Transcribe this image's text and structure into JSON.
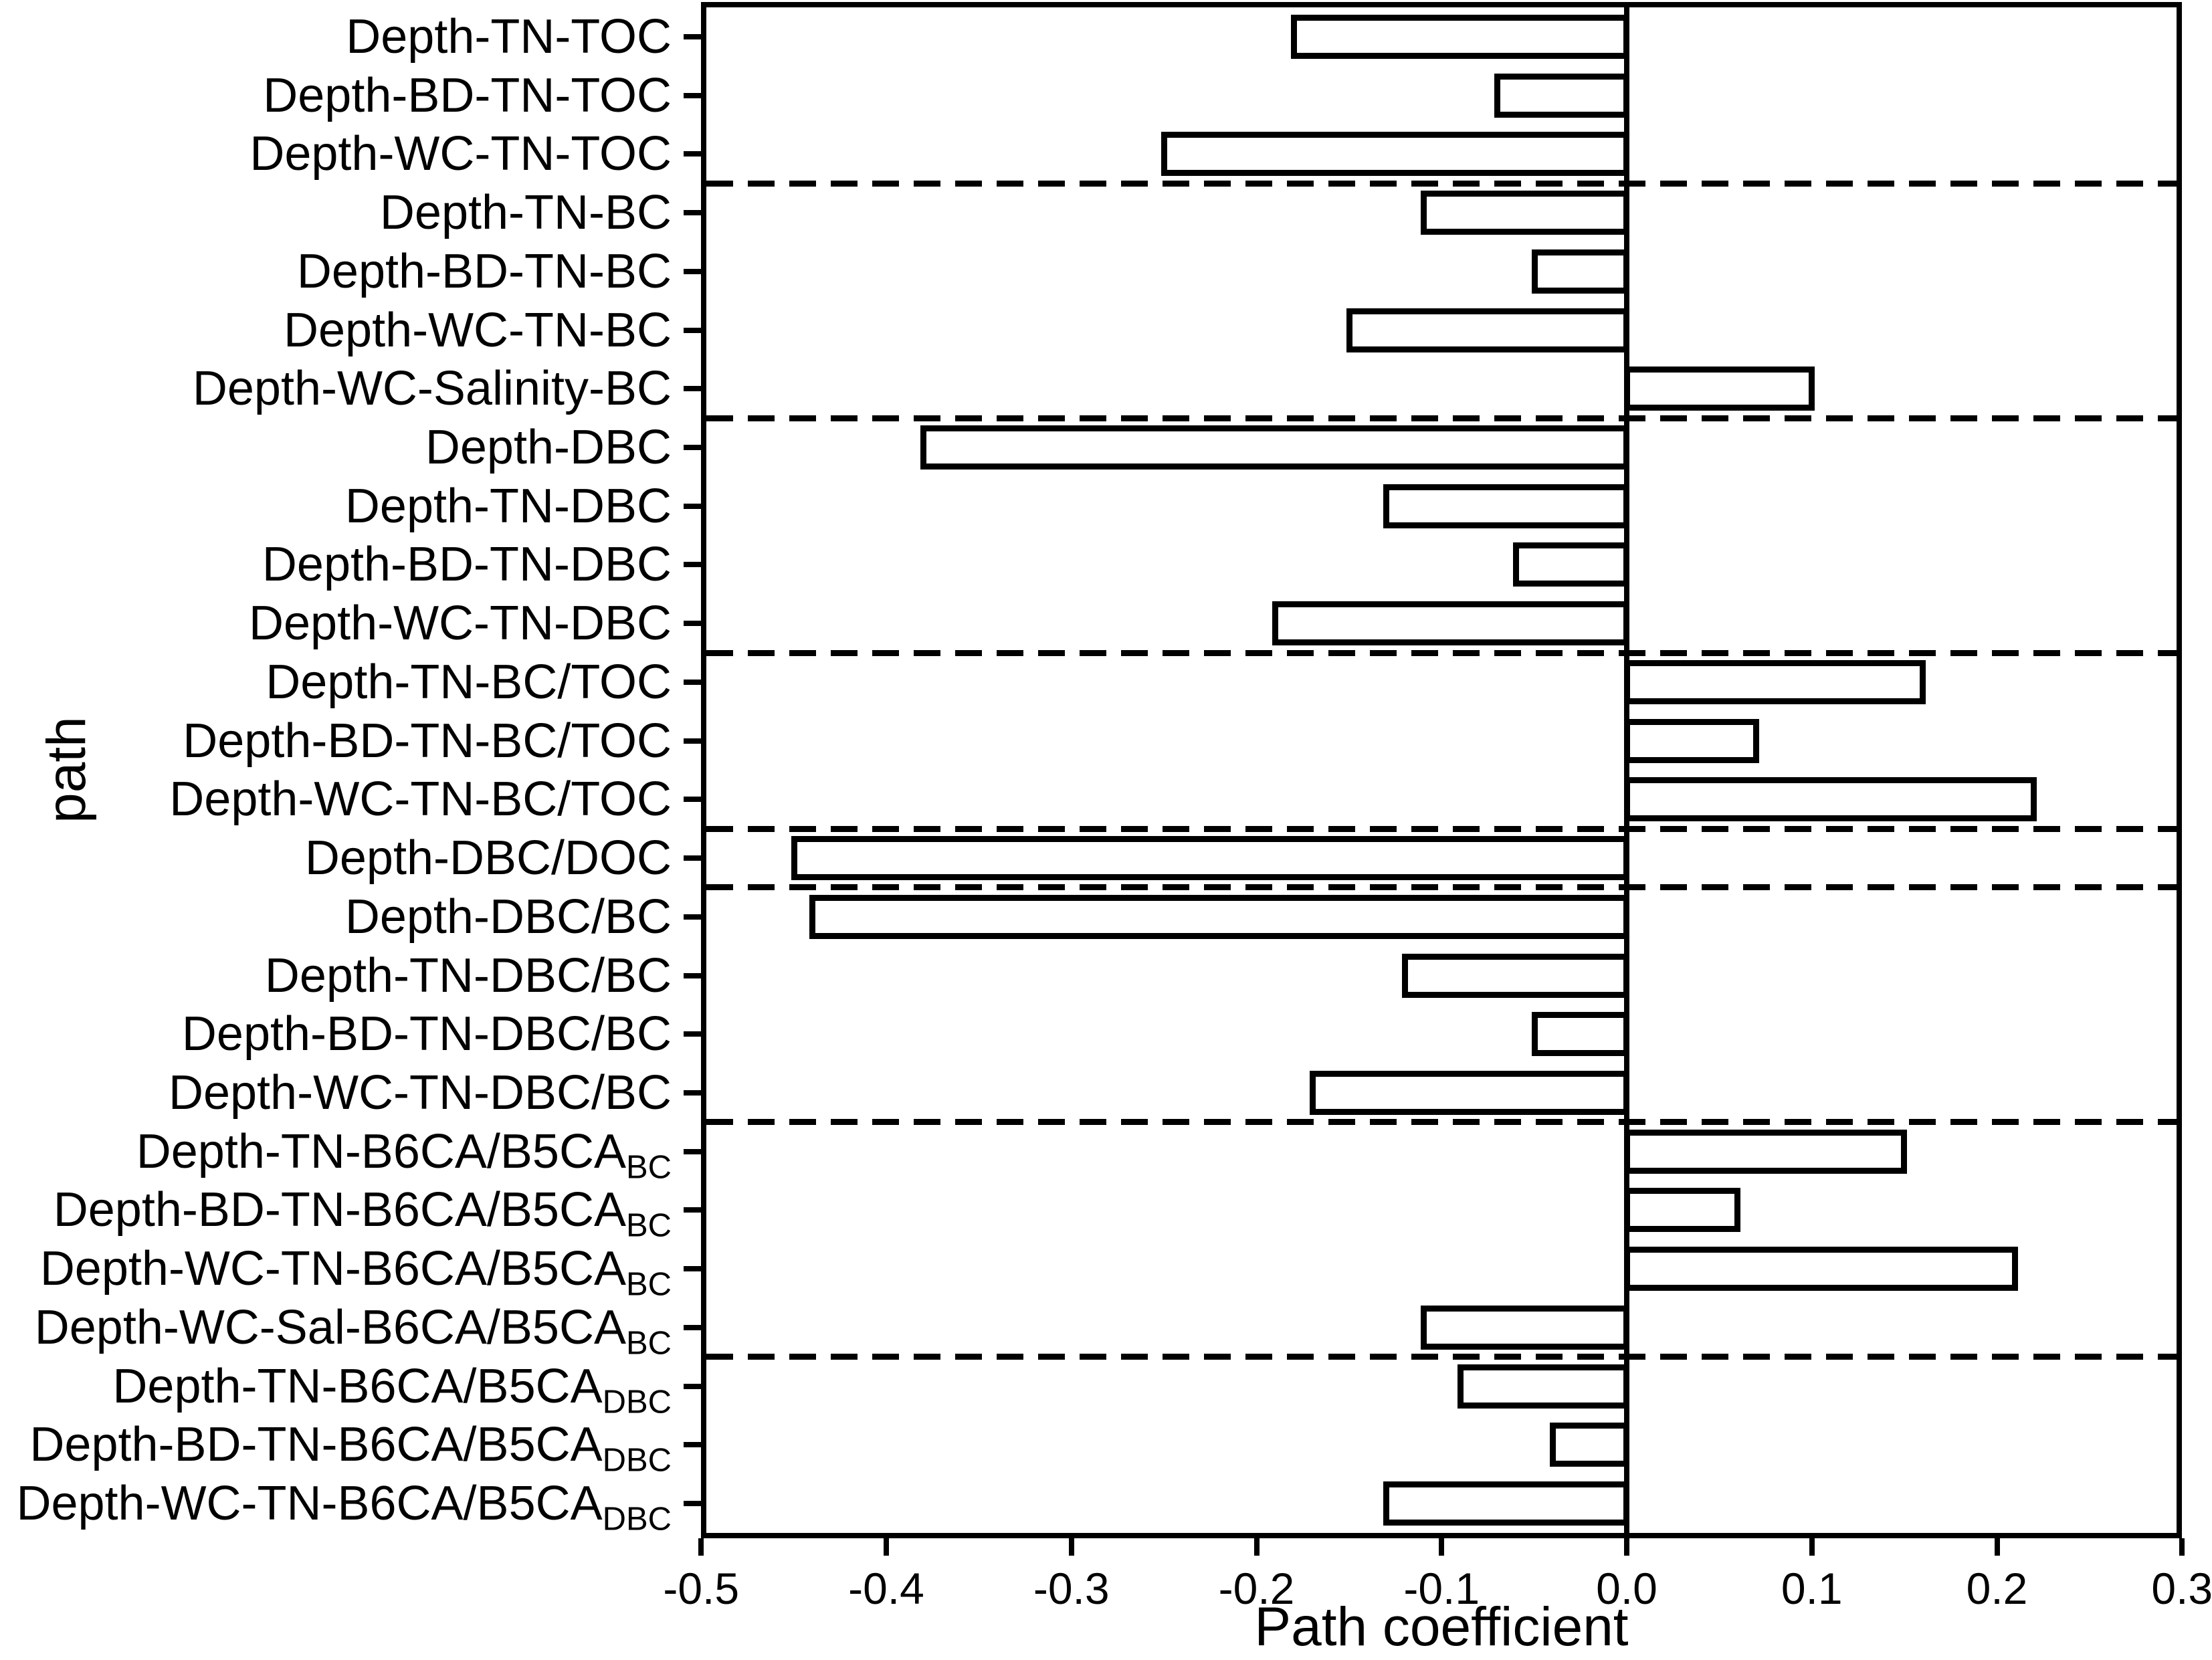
{
  "colors": {
    "foreground": "#000000",
    "background": "#ffffff",
    "bar_fill": "#ffffff"
  },
  "chart_data": {
    "type": "bar",
    "orientation": "horizontal",
    "title": "",
    "xlabel": "Path coefficient",
    "ylabel": "path",
    "xlim": [
      -0.5,
      0.3
    ],
    "xticks": [
      -0.5,
      -0.4,
      -0.3,
      -0.2,
      -0.1,
      0.0,
      0.1,
      0.2,
      0.3
    ],
    "xtick_labels": [
      "-0.5",
      "-0.4",
      "-0.3",
      "-0.2",
      "-0.1",
      "0.0",
      "0.1",
      "0.2",
      "0.3"
    ],
    "grid": false,
    "legend": "none",
    "bar_style": {
      "fill": "#ffffff",
      "stroke": "#000000"
    },
    "categories": [
      {
        "text": "Depth-TN-TOC",
        "sub": ""
      },
      {
        "text": "Depth-BD-TN-TOC",
        "sub": ""
      },
      {
        "text": "Depth-WC-TN-TOC",
        "sub": ""
      },
      {
        "text": "Depth-TN-BC",
        "sub": ""
      },
      {
        "text": "Depth-BD-TN-BC",
        "sub": ""
      },
      {
        "text": "Depth-WC-TN-BC",
        "sub": ""
      },
      {
        "text": "Depth-WC-Salinity-BC",
        "sub": ""
      },
      {
        "text": "Depth-DBC",
        "sub": ""
      },
      {
        "text": "Depth-TN-DBC",
        "sub": ""
      },
      {
        "text": "Depth-BD-TN-DBC",
        "sub": ""
      },
      {
        "text": "Depth-WC-TN-DBC",
        "sub": ""
      },
      {
        "text": "Depth-TN-BC/TOC",
        "sub": ""
      },
      {
        "text": "Depth-BD-TN-BC/TOC",
        "sub": ""
      },
      {
        "text": "Depth-WC-TN-BC/TOC",
        "sub": ""
      },
      {
        "text": "Depth-DBC/DOC",
        "sub": ""
      },
      {
        "text": "Depth-DBC/BC",
        "sub": ""
      },
      {
        "text": "Depth-TN-DBC/BC",
        "sub": ""
      },
      {
        "text": "Depth-BD-TN-DBC/BC",
        "sub": ""
      },
      {
        "text": "Depth-WC-TN-DBC/BC",
        "sub": ""
      },
      {
        "text": "Depth-TN-B6CA/B5CA",
        "sub": "BC"
      },
      {
        "text": "Depth-BD-TN-B6CA/B5CA",
        "sub": "BC"
      },
      {
        "text": "Depth-WC-TN-B6CA/B5CA",
        "sub": "BC"
      },
      {
        "text": "Depth-WC-Sal-B6CA/B5CA",
        "sub": "BC"
      },
      {
        "text": "Depth-TN-B6CA/B5CA",
        "sub": "DBC"
      },
      {
        "text": "Depth-BD-TN-B6CA/B5CA",
        "sub": "DBC"
      },
      {
        "text": "Depth-WC-TN-B6CA/B5CA",
        "sub": "DBC"
      }
    ],
    "values": [
      -0.18,
      -0.07,
      -0.25,
      -0.11,
      -0.05,
      -0.15,
      0.1,
      -0.38,
      -0.13,
      -0.06,
      -0.19,
      0.16,
      0.07,
      0.22,
      -0.45,
      -0.44,
      -0.12,
      -0.05,
      -0.17,
      0.15,
      0.06,
      0.21,
      -0.11,
      -0.09,
      -0.04,
      -0.13
    ],
    "separators_after_index": [
      2,
      6,
      10,
      13,
      14,
      18,
      22
    ]
  }
}
